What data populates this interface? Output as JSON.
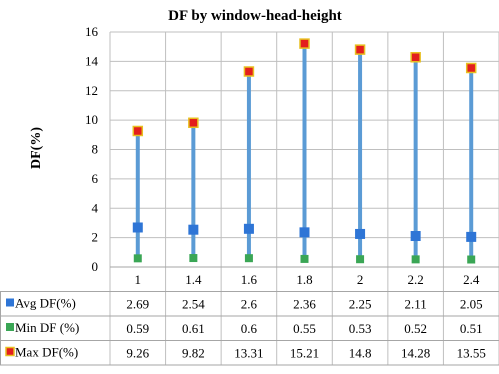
{
  "chart_data": {
    "type": "line",
    "title": "DF by window-head-height",
    "xlabel": "",
    "ylabel": "DF(%)",
    "ylim": [
      0,
      16
    ],
    "yticks": [
      0,
      2,
      4,
      6,
      8,
      10,
      12,
      14,
      16
    ],
    "categories": [
      "1",
      "1.4",
      "1.6",
      "1.8",
      "2",
      "2.2",
      "2.4"
    ],
    "grid": true,
    "legend": "data-table",
    "series": [
      {
        "name": "Avg DF(%)",
        "color": "#2e75d6",
        "values": [
          2.69,
          2.54,
          2.6,
          2.36,
          2.25,
          2.11,
          2.05
        ]
      },
      {
        "name": "Min DF (%)",
        "color": "#3aa655",
        "values": [
          0.59,
          0.61,
          0.6,
          0.55,
          0.53,
          0.52,
          0.51
        ]
      },
      {
        "name": "Max DF(%)",
        "color": "#e31e1e",
        "border_color": "#e8c020",
        "values": [
          9.26,
          9.82,
          13.31,
          15.21,
          14.8,
          14.28,
          13.55
        ]
      }
    ],
    "range_bar_color": "#5b9bd5"
  },
  "table": {
    "rows": [
      {
        "label": "Avg DF(%)",
        "cells": [
          "2.69",
          "2.54",
          "2.6",
          "2.36",
          "2.25",
          "2.11",
          "2.05"
        ]
      },
      {
        "label": "Min DF (%)",
        "cells": [
          "0.59",
          "0.61",
          "0.6",
          "0.55",
          "0.53",
          "0.52",
          "0.51"
        ]
      },
      {
        "label": "Max DF(%)",
        "cells": [
          "9.26",
          "9.82",
          "13.31",
          "15.21",
          "14.8",
          "14.28",
          "13.55"
        ]
      }
    ]
  }
}
